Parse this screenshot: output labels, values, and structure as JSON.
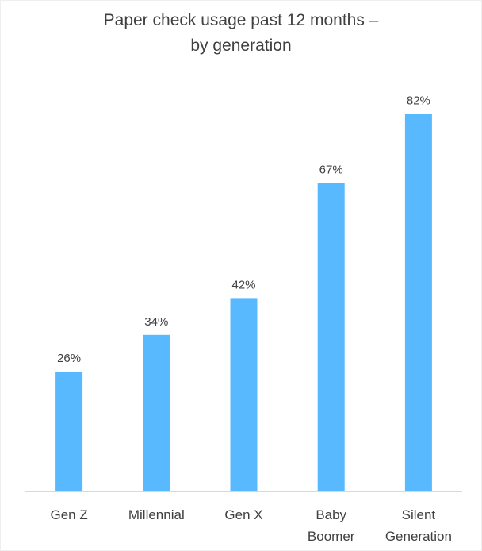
{
  "chart_data": {
    "type": "bar",
    "title": "Paper check usage past 12 months –",
    "subtitle": "by generation",
    "xlabel": "",
    "ylabel": "",
    "categories": [
      "Gen Z",
      "Millennial",
      "Gen X",
      "Baby Boomer",
      "Silent Generation"
    ],
    "category_lines": [
      [
        "Gen Z"
      ],
      [
        "Millennial"
      ],
      [
        "Gen X"
      ],
      [
        "Baby",
        "Boomer"
      ],
      [
        "Silent",
        "Generation"
      ]
    ],
    "values": [
      26,
      34,
      42,
      67,
      82
    ],
    "data_labels": [
      "26%",
      "34%",
      "42%",
      "67%",
      "82%"
    ],
    "ylim": [
      0,
      100
    ],
    "grid": false,
    "legend": "none",
    "bar_color": "#58b9ff",
    "axis_color": "#d9d9d9"
  }
}
